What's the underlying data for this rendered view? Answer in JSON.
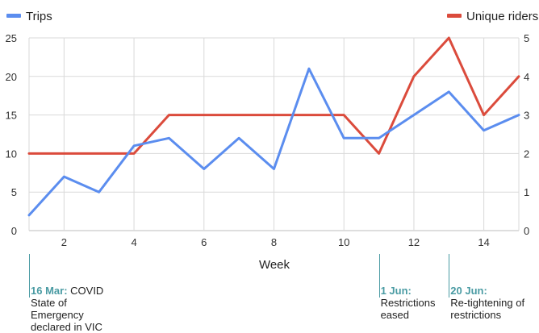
{
  "colors": {
    "trips": "#5b8def",
    "riders": "#db4b3c",
    "grid": "#d9d9d9",
    "annotation": "#4a9ba3"
  },
  "legend": {
    "trips": "Trips",
    "riders": "Unique riders"
  },
  "chart_data": {
    "type": "line",
    "xlabel": "Week",
    "x": [
      1,
      2,
      3,
      4,
      5,
      6,
      7,
      8,
      9,
      10,
      11,
      12,
      13,
      14,
      15
    ],
    "xlim": [
      1,
      15
    ],
    "xticks": [
      2,
      4,
      6,
      8,
      10,
      12,
      14
    ],
    "series": [
      {
        "name": "Trips",
        "axis": "left",
        "values": [
          2,
          7,
          5,
          11,
          12,
          8,
          12,
          8,
          21,
          12,
          12,
          15,
          18,
          13,
          15
        ]
      },
      {
        "name": "Unique riders",
        "axis": "right",
        "values": [
          2,
          2,
          2,
          2,
          3,
          3,
          3,
          3,
          3,
          3,
          2,
          4,
          5,
          3,
          4
        ]
      }
    ],
    "ylim_left": [
      0,
      25
    ],
    "yticks_left": [
      0,
      5,
      10,
      15,
      20,
      25
    ],
    "ylim_right": [
      0,
      5
    ],
    "yticks_right": [
      0,
      1,
      2,
      3,
      4,
      5
    ],
    "grid": true,
    "legend_placement": "top"
  },
  "annotations": [
    {
      "x": 1,
      "date": "16 Mar:",
      "text": [
        "COVID",
        "State of",
        "Emergency",
        "declared in VIC"
      ]
    },
    {
      "x": 11,
      "date": "1 Jun:",
      "text": [
        "",
        "Restrictions",
        "eased"
      ]
    },
    {
      "x": 13,
      "date": "20 Jun:",
      "text": [
        "",
        "Re-tightening of",
        "restrictions"
      ]
    }
  ]
}
